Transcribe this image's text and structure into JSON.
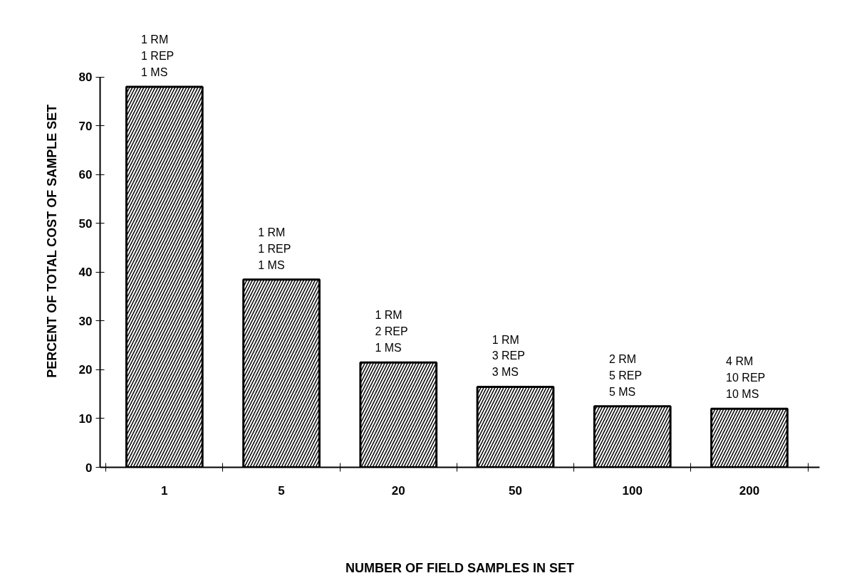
{
  "chart_data": {
    "type": "bar",
    "xlabel": "NUMBER OF FIELD SAMPLES IN SET",
    "ylabel": "PERCENT OF TOTAL COST OF SAMPLE SET",
    "categories": [
      "1",
      "5",
      "20",
      "50",
      "100",
      "200"
    ],
    "values": [
      78,
      38.5,
      21.5,
      16.5,
      12.5,
      12
    ],
    "color": "#000000",
    "ylim": [
      0,
      80
    ],
    "yticks": [
      0,
      10,
      20,
      30,
      40,
      50,
      60,
      70,
      80
    ],
    "grid": false,
    "annotations": [
      {
        "text": "1 RM\n1 REP\n1 MS",
        "x": "1",
        "y": 78
      },
      {
        "text": "1 RM\n1 REP\n1 MS",
        "x": "5",
        "y": 38.5
      },
      {
        "text": "1 RM\n2 REP\n1 MS",
        "x": "20",
        "y": 21.5
      },
      {
        "text": "1 RM\n3 REP\n3 MS",
        "x": "50",
        "y": 16.5
      },
      {
        "text": "2 RM\n5 REP\n5 MS",
        "x": "100",
        "y": 12.5
      },
      {
        "text": "4 RM\n10 REP\n10 MS",
        "x": "200",
        "y": 12
      }
    ]
  }
}
